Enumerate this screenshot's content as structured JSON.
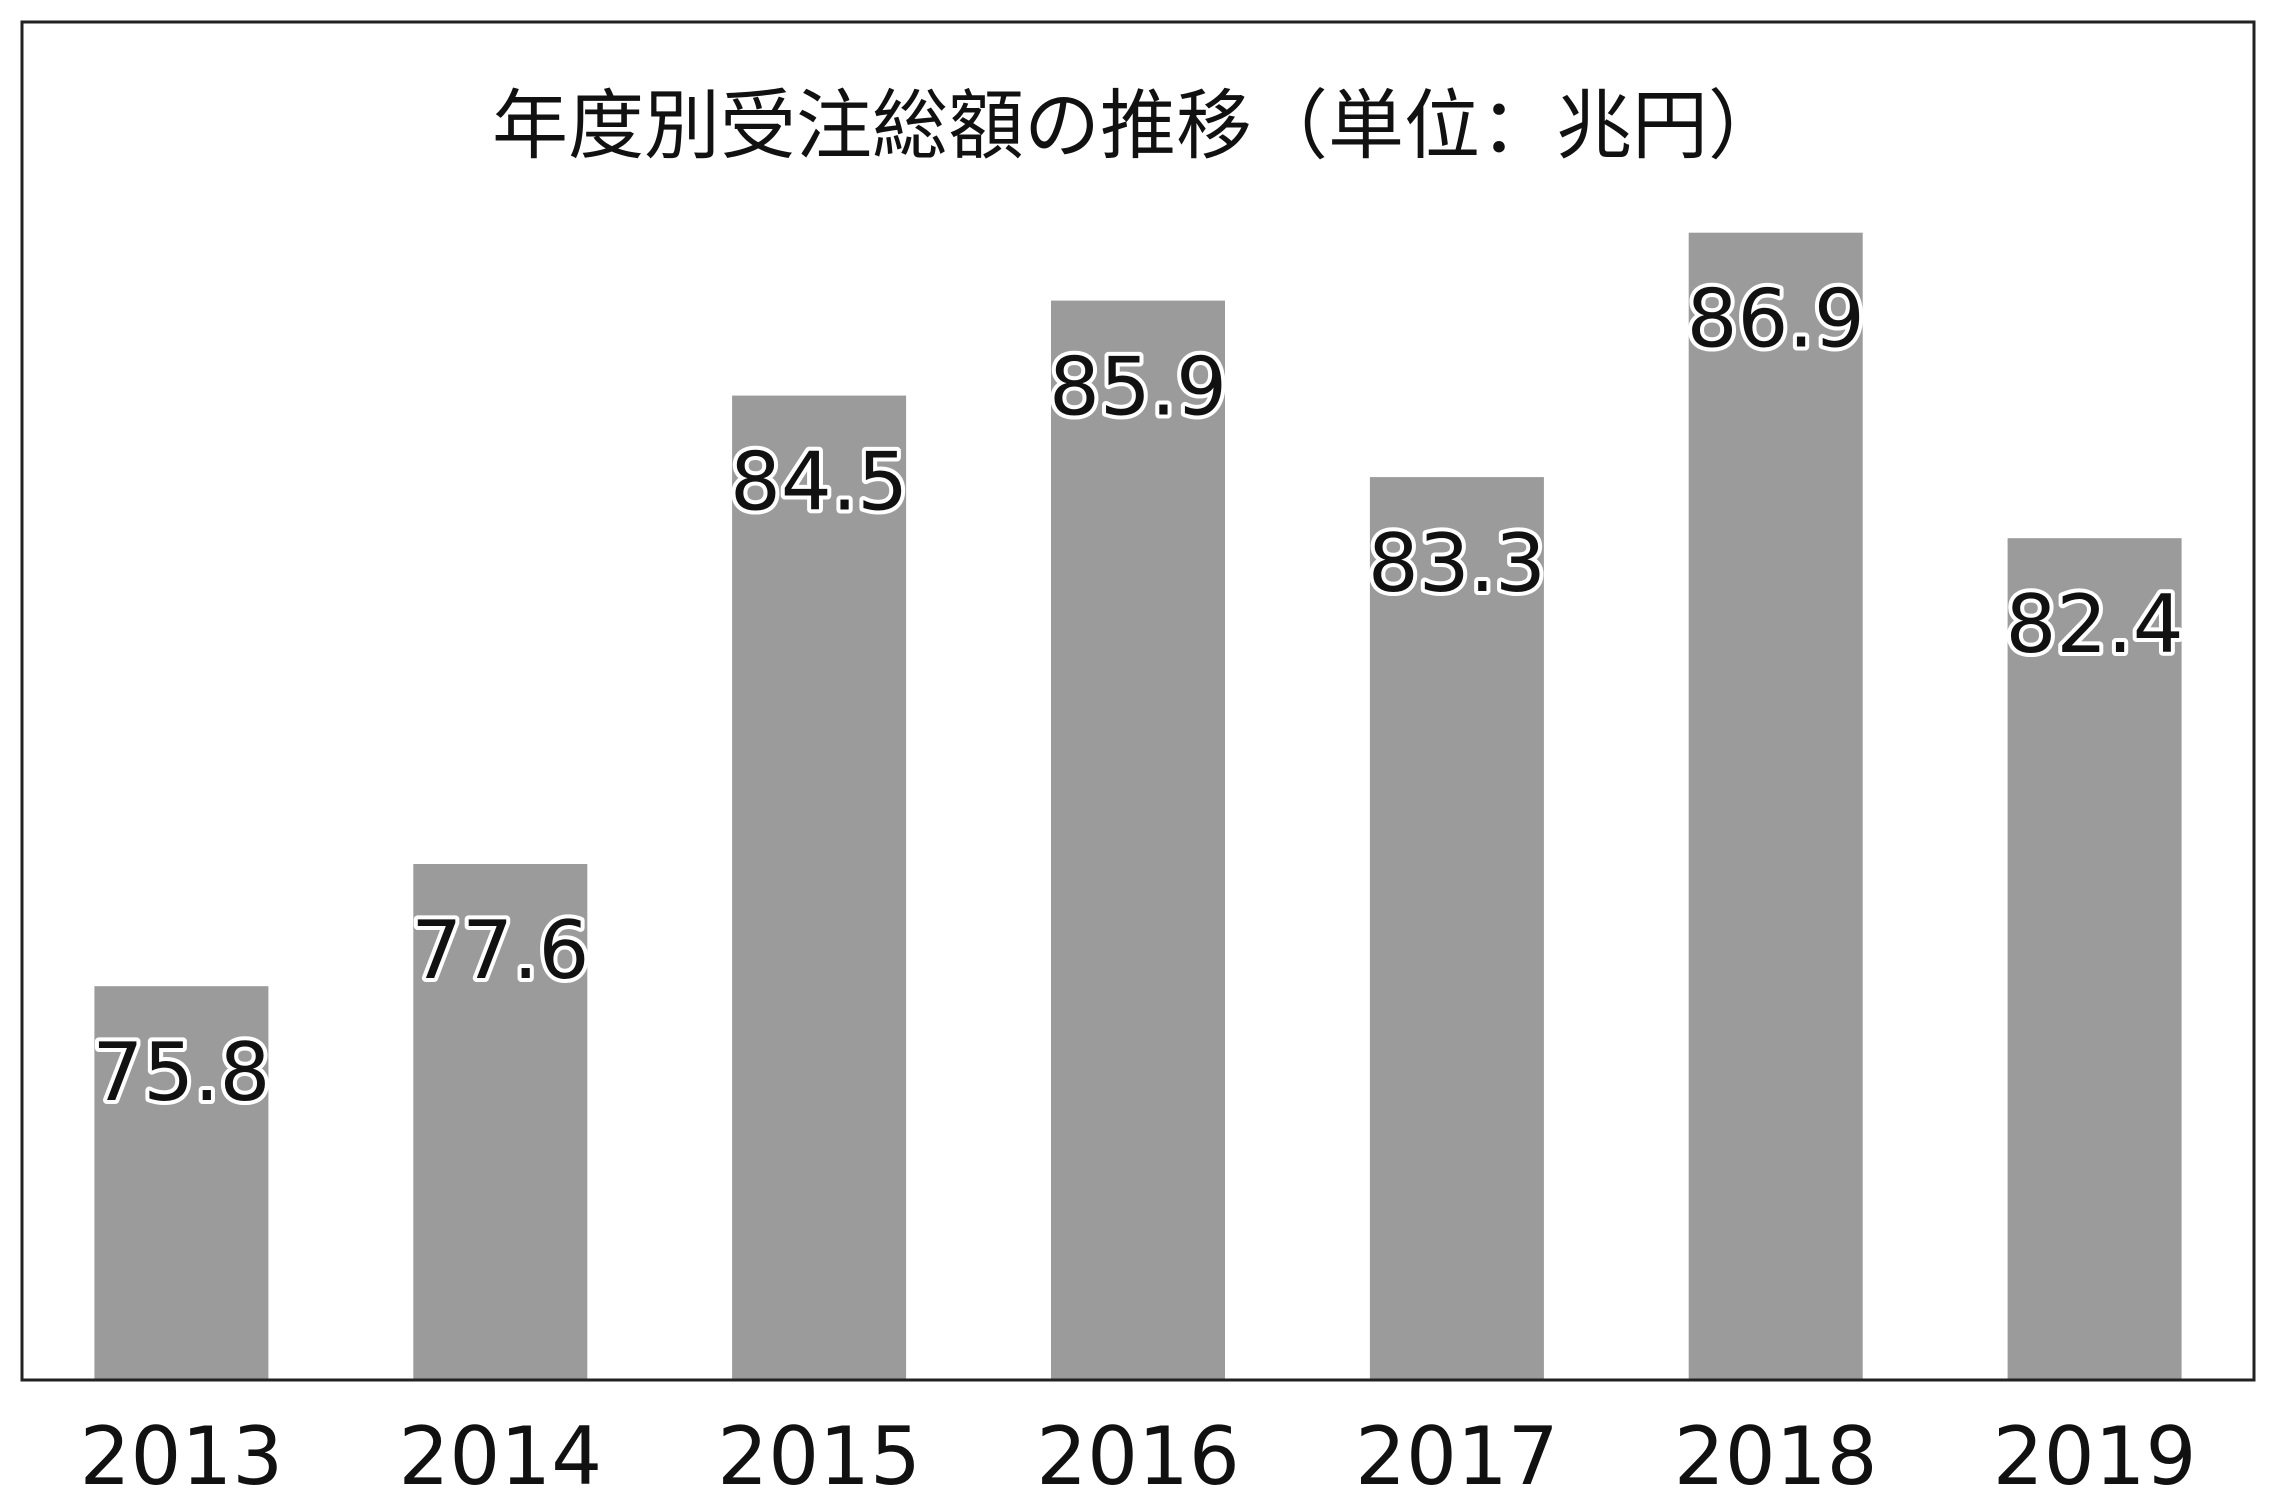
{
  "chart_data": {
    "type": "bar",
    "title": "年度別受注総額の推移（単位：兆円）",
    "categories": [
      "2013",
      "2014",
      "2015",
      "2016",
      "2017",
      "2018",
      "2019"
    ],
    "series": [
      {
        "values": [
          75.8,
          77.6,
          84.5,
          85.9,
          83.3,
          86.9,
          82.4
        ]
      }
    ],
    "value_labels": [
      "75.8",
      "77.6",
      "84.5",
      "85.9",
      "83.3",
      "86.9",
      "82.4"
    ],
    "ylim": [
      70,
      88
    ],
    "grid": false,
    "legend": "none",
    "colors": {
      "bar": "#9b9b9b",
      "frame": "#222222",
      "text": "#111111"
    }
  }
}
